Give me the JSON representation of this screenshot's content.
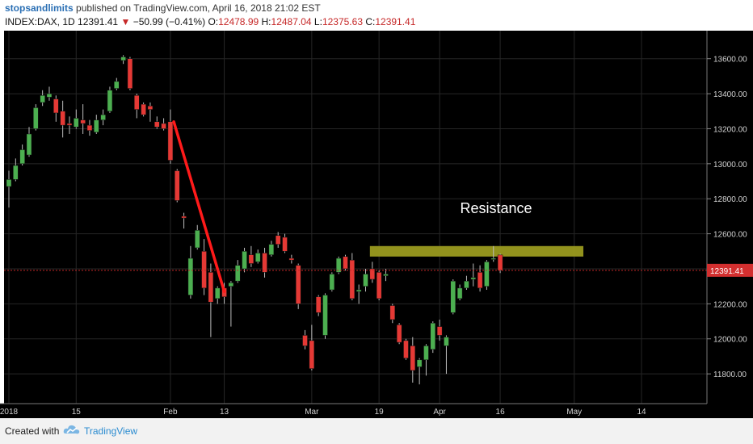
{
  "header": {
    "author": "stopsandlimits",
    "published_text": "published on TradingView.com, April 16, 2018 21:02 EST",
    "symbol_line": "INDEX:DAX, 1D",
    "last": "12391.41",
    "change": "−50.99 (−0.41%)",
    "o_label": "O:",
    "o_value": "12478.99",
    "h_label": "H:",
    "h_value": "12487.04",
    "l_label": "L:",
    "l_value": "12375.63",
    "c_label": "C:",
    "c_value": "12391.41"
  },
  "footer": {
    "created_with": "Created with",
    "brand": "TradingView"
  },
  "colors": {
    "up": "#4caf50",
    "down": "#e53935",
    "background": "#000000",
    "resistance_zone": "#9a9a1f",
    "trendline": "#ff1a1a",
    "price_line": "#c62828"
  },
  "chart_data": {
    "type": "candlestick",
    "ylim": [
      11630,
      13760
    ],
    "y_ticks": [
      11800,
      12000,
      12200,
      12400,
      12600,
      12800,
      13000,
      13200,
      13400,
      13600
    ],
    "y_tick_labels": [
      "11800.00",
      "12000.00",
      "12200.00",
      "12400.00",
      "12600.00",
      "12800.00",
      "13000.00",
      "13200.00",
      "13400.00",
      "13600.00"
    ],
    "x_tick_labels": [
      "2018",
      "15",
      "Feb",
      "13",
      "Mar",
      "19",
      "Apr",
      "16",
      "May",
      "14"
    ],
    "x_tick_index": [
      0,
      10,
      24,
      32,
      45,
      55,
      64,
      73,
      84,
      94
    ],
    "last_price": 12391.41,
    "last_price_label": "12391.41",
    "candles": [
      {
        "o": 12870,
        "h": 12960,
        "l": 12750,
        "c": 12910
      },
      {
        "o": 12910,
        "h": 13030,
        "l": 12900,
        "c": 12990
      },
      {
        "o": 13000,
        "h": 13110,
        "l": 12990,
        "c": 13080
      },
      {
        "o": 13050,
        "h": 13210,
        "l": 13040,
        "c": 13170
      },
      {
        "o": 13200,
        "h": 13340,
        "l": 13190,
        "c": 13320
      },
      {
        "o": 13350,
        "h": 13420,
        "l": 13330,
        "c": 13390
      },
      {
        "o": 13380,
        "h": 13440,
        "l": 13360,
        "c": 13400
      },
      {
        "o": 13370,
        "h": 13390,
        "l": 13240,
        "c": 13290
      },
      {
        "o": 13300,
        "h": 13360,
        "l": 13150,
        "c": 13220
      },
      {
        "o": 13230,
        "h": 13270,
        "l": 13170,
        "c": 13220
      },
      {
        "o": 13210,
        "h": 13310,
        "l": 13200,
        "c": 13260
      },
      {
        "o": 13250,
        "h": 13340,
        "l": 13170,
        "c": 13230
      },
      {
        "o": 13220,
        "h": 13250,
        "l": 13160,
        "c": 13190
      },
      {
        "o": 13180,
        "h": 13280,
        "l": 13170,
        "c": 13250
      },
      {
        "o": 13250,
        "h": 13310,
        "l": 13220,
        "c": 13280
      },
      {
        "o": 13300,
        "h": 13440,
        "l": 13290,
        "c": 13420
      },
      {
        "o": 13430,
        "h": 13490,
        "l": 13420,
        "c": 13470
      },
      {
        "o": 13590,
        "h": 13620,
        "l": 13570,
        "c": 13610
      },
      {
        "o": 13600,
        "h": 13610,
        "l": 13420,
        "c": 13430
      },
      {
        "o": 13390,
        "h": 13400,
        "l": 13260,
        "c": 13310
      },
      {
        "o": 13340,
        "h": 13350,
        "l": 13270,
        "c": 13280
      },
      {
        "o": 13330,
        "h": 13350,
        "l": 13240,
        "c": 13310
      },
      {
        "o": 13240,
        "h": 13270,
        "l": 13200,
        "c": 13210
      },
      {
        "o": 13230,
        "h": 13260,
        "l": 13190,
        "c": 13200
      },
      {
        "o": 13240,
        "h": 13310,
        "l": 13000,
        "c": 13020
      },
      {
        "o": 12960,
        "h": 12970,
        "l": 12780,
        "c": 12790
      },
      {
        "o": 12700,
        "h": 12720,
        "l": 12630,
        "c": 12690
      },
      {
        "o": 12250,
        "h": 12530,
        "l": 12230,
        "c": 12460
      },
      {
        "o": 12520,
        "h": 12650,
        "l": 12510,
        "c": 12620
      },
      {
        "o": 12500,
        "h": 12570,
        "l": 12250,
        "c": 12290
      },
      {
        "o": 12380,
        "h": 12430,
        "l": 12010,
        "c": 12210
      },
      {
        "o": 12230,
        "h": 12300,
        "l": 12200,
        "c": 12290
      },
      {
        "o": 12290,
        "h": 12320,
        "l": 12200,
        "c": 12240
      },
      {
        "o": 12300,
        "h": 12330,
        "l": 12070,
        "c": 12320
      },
      {
        "o": 12330,
        "h": 12450,
        "l": 12320,
        "c": 12420
      },
      {
        "o": 12400,
        "h": 12520,
        "l": 12380,
        "c": 12500
      },
      {
        "o": 12480,
        "h": 12530,
        "l": 12410,
        "c": 12430
      },
      {
        "o": 12440,
        "h": 12510,
        "l": 12430,
        "c": 12490
      },
      {
        "o": 12490,
        "h": 12520,
        "l": 12350,
        "c": 12380
      },
      {
        "o": 12480,
        "h": 12560,
        "l": 12470,
        "c": 12540
      },
      {
        "o": 12590,
        "h": 12610,
        "l": 12520,
        "c": 12540
      },
      {
        "o": 12580,
        "h": 12600,
        "l": 12490,
        "c": 12500
      },
      {
        "o": 12460,
        "h": 12480,
        "l": 12430,
        "c": 12450
      },
      {
        "o": 12420,
        "h": 12430,
        "l": 12170,
        "c": 12200
      },
      {
        "o": 12020,
        "h": 12050,
        "l": 11940,
        "c": 11960
      },
      {
        "o": 11990,
        "h": 12080,
        "l": 11820,
        "c": 11830
      },
      {
        "o": 12240,
        "h": 12250,
        "l": 12130,
        "c": 12150
      },
      {
        "o": 12020,
        "h": 12260,
        "l": 12000,
        "c": 12250
      },
      {
        "o": 12280,
        "h": 12380,
        "l": 12270,
        "c": 12370
      },
      {
        "o": 12380,
        "h": 12470,
        "l": 12370,
        "c": 12460
      },
      {
        "o": 12470,
        "h": 12480,
        "l": 12390,
        "c": 12400
      },
      {
        "o": 12450,
        "h": 12490,
        "l": 12220,
        "c": 12230
      },
      {
        "o": 12270,
        "h": 12310,
        "l": 12200,
        "c": 12280
      },
      {
        "o": 12300,
        "h": 12400,
        "l": 12270,
        "c": 12370
      },
      {
        "o": 12400,
        "h": 12440,
        "l": 12320,
        "c": 12340
      },
      {
        "o": 12380,
        "h": 12390,
        "l": 12220,
        "c": 12230
      },
      {
        "o": 12360,
        "h": 12400,
        "l": 12330,
        "c": 12370
      },
      {
        "o": 12190,
        "h": 12200,
        "l": 12090,
        "c": 12110
      },
      {
        "o": 12080,
        "h": 12090,
        "l": 11970,
        "c": 11980
      },
      {
        "o": 11990,
        "h": 12000,
        "l": 11880,
        "c": 11890
      },
      {
        "o": 11960,
        "h": 12010,
        "l": 11750,
        "c": 11820
      },
      {
        "o": 11840,
        "h": 11890,
        "l": 11740,
        "c": 11880
      },
      {
        "o": 11880,
        "h": 11970,
        "l": 11790,
        "c": 11960
      },
      {
        "o": 11940,
        "h": 12100,
        "l": 11920,
        "c": 12090
      },
      {
        "o": 12070,
        "h": 12110,
        "l": 11990,
        "c": 12020
      },
      {
        "o": 11960,
        "h": 12020,
        "l": 11800,
        "c": 12010
      },
      {
        "o": 12150,
        "h": 12340,
        "l": 12140,
        "c": 12330
      },
      {
        "o": 12230,
        "h": 12310,
        "l": 12220,
        "c": 12290
      },
      {
        "o": 12290,
        "h": 12360,
        "l": 12280,
        "c": 12330
      },
      {
        "o": 12340,
        "h": 12430,
        "l": 12300,
        "c": 12350
      },
      {
        "o": 12380,
        "h": 12420,
        "l": 12270,
        "c": 12290
      },
      {
        "o": 12300,
        "h": 12450,
        "l": 12280,
        "c": 12440
      },
      {
        "o": 12460,
        "h": 12530,
        "l": 12440,
        "c": 12460
      },
      {
        "o": 12478.99,
        "h": 12487.04,
        "l": 12375.63,
        "c": 12391.41
      }
    ],
    "annotations": {
      "resistance_label": "Resistance",
      "resistance_zone": {
        "start": 54,
        "end": 85,
        "low": 12470,
        "high": 12530
      },
      "trendline": {
        "from_index": 24.5,
        "from_price": 13240,
        "to_index": 32,
        "to_price": 12270
      }
    }
  }
}
